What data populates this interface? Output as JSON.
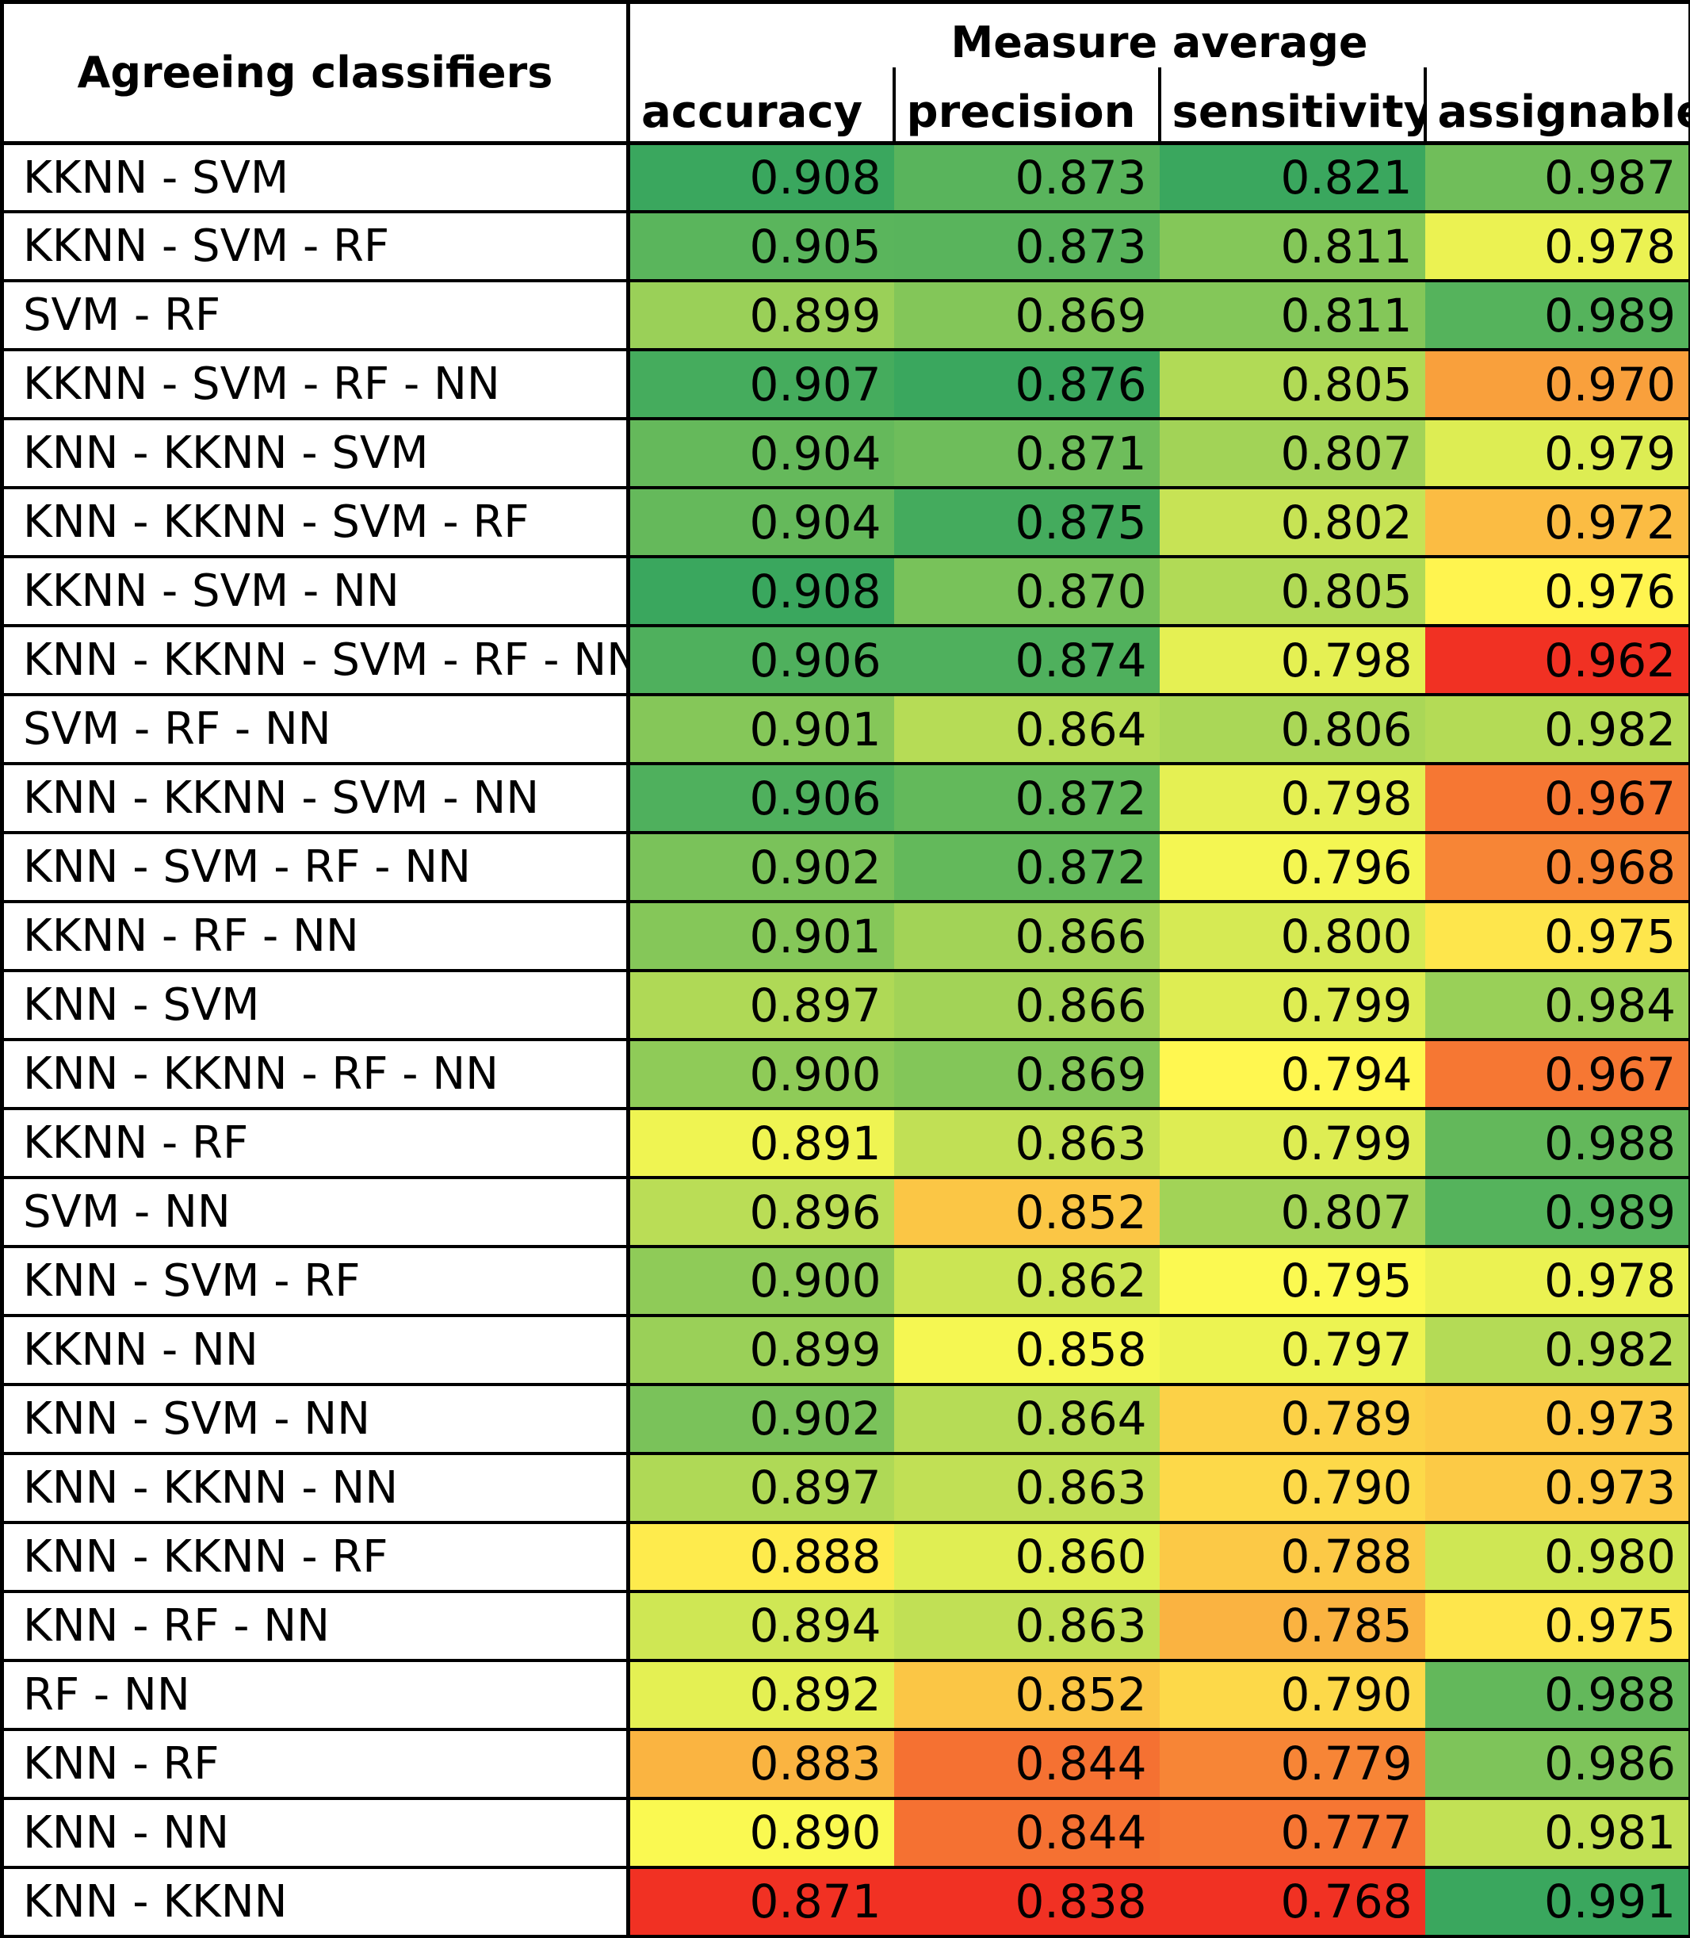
{
  "table": {
    "label_header": "Agreeing classifiers",
    "group_header": "Measure average",
    "columns": [
      "accuracy",
      "precision",
      "sensitivity",
      "assignable"
    ]
  },
  "colors": {
    "low": "#f13123",
    "mid": "#fffb51",
    "high": "#3aa75e"
  },
  "chart_data": {
    "type": "table",
    "columns": [
      "accuracy",
      "precision",
      "sensitivity",
      "assignable"
    ],
    "rows": [
      {
        "label": "KKNN - SVM",
        "values": [
          "0.908",
          "0.873",
          "0.821",
          "0.987"
        ]
      },
      {
        "label": "KKNN - SVM - RF",
        "values": [
          "0.905",
          "0.873",
          "0.811",
          "0.978"
        ]
      },
      {
        "label": "SVM - RF",
        "values": [
          "0.899",
          "0.869",
          "0.811",
          "0.989"
        ]
      },
      {
        "label": "KKNN - SVM - RF - NN",
        "values": [
          "0.907",
          "0.876",
          "0.805",
          "0.970"
        ]
      },
      {
        "label": "KNN - KKNN - SVM",
        "values": [
          "0.904",
          "0.871",
          "0.807",
          "0.979"
        ]
      },
      {
        "label": "KNN - KKNN - SVM - RF",
        "values": [
          "0.904",
          "0.875",
          "0.802",
          "0.972"
        ]
      },
      {
        "label": "KKNN - SVM - NN",
        "values": [
          "0.908",
          "0.870",
          "0.805",
          "0.976"
        ]
      },
      {
        "label": "KNN - KKNN - SVM - RF - NN",
        "values": [
          "0.906",
          "0.874",
          "0.798",
          "0.962"
        ]
      },
      {
        "label": "SVM - RF - NN",
        "values": [
          "0.901",
          "0.864",
          "0.806",
          "0.982"
        ]
      },
      {
        "label": "KNN - KKNN - SVM - NN",
        "values": [
          "0.906",
          "0.872",
          "0.798",
          "0.967"
        ]
      },
      {
        "label": "KNN - SVM - RF - NN",
        "values": [
          "0.902",
          "0.872",
          "0.796",
          "0.968"
        ]
      },
      {
        "label": "KKNN - RF - NN",
        "values": [
          "0.901",
          "0.866",
          "0.800",
          "0.975"
        ]
      },
      {
        "label": "KNN - SVM",
        "values": [
          "0.897",
          "0.866",
          "0.799",
          "0.984"
        ]
      },
      {
        "label": "KNN - KKNN - RF - NN",
        "values": [
          "0.900",
          "0.869",
          "0.794",
          "0.967"
        ]
      },
      {
        "label": "KKNN - RF",
        "values": [
          "0.891",
          "0.863",
          "0.799",
          "0.988"
        ]
      },
      {
        "label": "SVM - NN",
        "values": [
          "0.896",
          "0.852",
          "0.807",
          "0.989"
        ]
      },
      {
        "label": "KNN - SVM - RF",
        "values": [
          "0.900",
          "0.862",
          "0.795",
          "0.978"
        ]
      },
      {
        "label": "KKNN - NN",
        "values": [
          "0.899",
          "0.858",
          "0.797",
          "0.982"
        ]
      },
      {
        "label": "KNN - SVM - NN",
        "values": [
          "0.902",
          "0.864",
          "0.789",
          "0.973"
        ]
      },
      {
        "label": "KNN - KKNN - NN",
        "values": [
          "0.897",
          "0.863",
          "0.790",
          "0.973"
        ]
      },
      {
        "label": "KNN - KKNN - RF",
        "values": [
          "0.888",
          "0.860",
          "0.788",
          "0.980"
        ]
      },
      {
        "label": "KNN - RF - NN",
        "values": [
          "0.894",
          "0.863",
          "0.785",
          "0.975"
        ]
      },
      {
        "label": "RF - NN",
        "values": [
          "0.892",
          "0.852",
          "0.790",
          "0.988"
        ]
      },
      {
        "label": "KNN - RF",
        "values": [
          "0.883",
          "0.844",
          "0.779",
          "0.986"
        ]
      },
      {
        "label": "KNN - NN",
        "values": [
          "0.890",
          "0.844",
          "0.777",
          "0.981"
        ]
      },
      {
        "label": "KNN - KKNN",
        "values": [
          "0.871",
          "0.838",
          "0.768",
          "0.991"
        ]
      }
    ]
  }
}
